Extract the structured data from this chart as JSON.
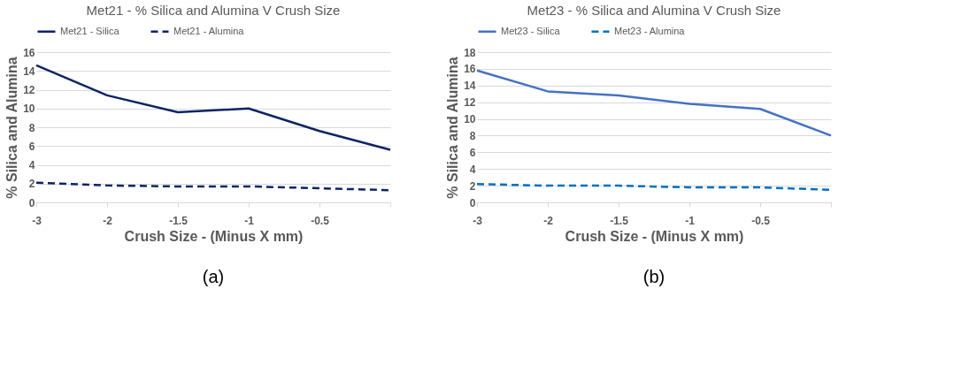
{
  "chart_data": [
    {
      "type": "line",
      "title": "Met21 - % Silica and Alumina  V Crush Size",
      "xlabel": "Crush Size - (Minus X mm)",
      "ylabel": "% Silica and Alumina",
      "categories": [
        "-3",
        "-2",
        "-1.5",
        "-1",
        "-0.5",
        null
      ],
      "series": [
        {
          "name": "Met21 - Silica",
          "color": "#0c2466",
          "line_style": "solid",
          "values": [
            14.6,
            11.4,
            9.6,
            10.0,
            7.6,
            5.6
          ]
        },
        {
          "name": "Met21 - Alumina",
          "color": "#0c2466",
          "line_style": "dashed",
          "values": [
            2.1,
            1.8,
            1.7,
            1.7,
            1.5,
            1.3
          ]
        }
      ],
      "ylim": [
        0,
        16
      ],
      "yticks": [
        0,
        2,
        4,
        6,
        8,
        10,
        12,
        14,
        16
      ],
      "grid": "y",
      "legend": "top",
      "marker": "none",
      "annotations": [
        "(a)"
      ]
    },
    {
      "type": "line",
      "title": "Met23 - % Silica and Alumina  V  Crush Size",
      "xlabel": "Crush Size - (Minus X mm)",
      "ylabel": "% Silica and Alumina",
      "categories": [
        "-3",
        "-2",
        "-1.5",
        "-1",
        "-0.5",
        null
      ],
      "series": [
        {
          "name": "Met23 - Silica",
          "color": "#4472c4",
          "line_style": "solid",
          "values": [
            15.8,
            13.3,
            12.8,
            11.8,
            11.2,
            8.0
          ]
        },
        {
          "name": "Met23 - Alumina",
          "color": "#0070c0",
          "line_style": "dashed",
          "values": [
            2.2,
            2.0,
            2.0,
            1.8,
            1.8,
            1.5
          ]
        }
      ],
      "ylim": [
        0,
        18
      ],
      "yticks": [
        0,
        2,
        4,
        6,
        8,
        10,
        12,
        14,
        16,
        18
      ],
      "grid": "y",
      "legend": "top",
      "marker": "none",
      "annotations": [
        "(b)"
      ]
    }
  ]
}
